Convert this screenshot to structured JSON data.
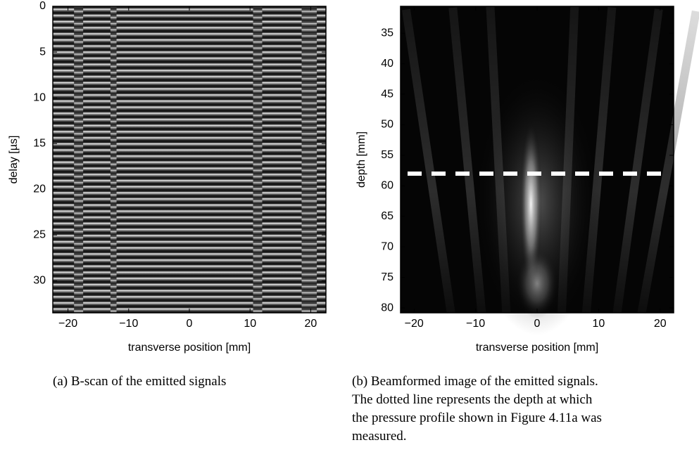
{
  "chart_data": [
    {
      "type": "image",
      "caption": [
        "(a)  B-scan of the emitted signals"
      ],
      "x_label": "transverse position [mm]",
      "y_label": "delay [µs]",
      "xlim": [
        -22.5,
        22.5
      ],
      "xticks": [
        {
          "value": -20,
          "label": "−20"
        },
        {
          "value": -10,
          "label": "−10"
        },
        0,
        10,
        20
      ],
      "ylim": [
        0,
        33.5
      ],
      "yticks": [
        0,
        5,
        10,
        15,
        20,
        25,
        30
      ],
      "y_reversed": true,
      "image": "bscan"
    },
    {
      "type": "image",
      "caption": [
        "(b) Beamformed image of the emitted signals.",
        "The dotted line represents the depth at which",
        "the pressure profile shown in Figure 4.11a was",
        "measured."
      ],
      "x_label": "transverse position [mm]",
      "y_label": "depth [mm]",
      "xlim": [
        -22.2,
        22.2
      ],
      "xticks": [
        {
          "value": -20,
          "label": "−20"
        },
        {
          "value": -10,
          "label": "−10"
        },
        0,
        10,
        20
      ],
      "ylim": [
        30.6,
        80.8
      ],
      "yticks": [
        35,
        40,
        45,
        50,
        55,
        60,
        65,
        70,
        75,
        80
      ],
      "y_reversed": true,
      "image": "beam",
      "marker_depth": 58
    }
  ]
}
